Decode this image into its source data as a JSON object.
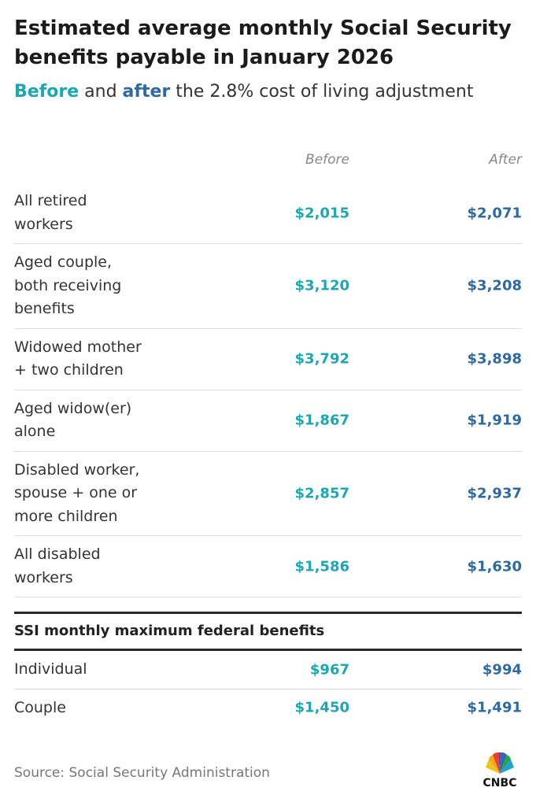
{
  "header": {
    "title": "Estimated average monthly Social Security benefits payable in January 2026",
    "subtitle": {
      "before": "Before",
      "and": "and",
      "after": "after",
      "rest": "the 2.8% cost of living adjustment"
    }
  },
  "table": {
    "columns": [
      "Before",
      "After"
    ],
    "rows": [
      {
        "label": [
          "All retired",
          "workers"
        ],
        "before": "$2,015",
        "after": "$2,071"
      },
      {
        "label": [
          "Aged couple,",
          "both receiving",
          "benefits"
        ],
        "before": "$3,120",
        "after": "$3,208"
      },
      {
        "label": [
          "Widowed mother",
          "+ two children"
        ],
        "before": "$3,792",
        "after": "$3,898"
      },
      {
        "label": [
          "Aged widow(er)",
          "alone"
        ],
        "before": "$1,867",
        "after": "$1,919"
      },
      {
        "label": [
          "Disabled worker,",
          "spouse + one or",
          "more children"
        ],
        "before": "$2,857",
        "after": "$2,937"
      },
      {
        "label": [
          "All disabled",
          "workers"
        ],
        "before": "$1,586",
        "after": "$1,630"
      }
    ]
  },
  "ssi": {
    "title": "SSI monthly maximum federal benefits",
    "rows": [
      {
        "label": [
          "Individual"
        ],
        "before": "$967",
        "after": "$994"
      },
      {
        "label": [
          "Couple"
        ],
        "before": "$1,450",
        "after": "$1,491"
      }
    ]
  },
  "footer": {
    "source": "Source: Social Security Administration",
    "logo": "CNBC"
  }
}
